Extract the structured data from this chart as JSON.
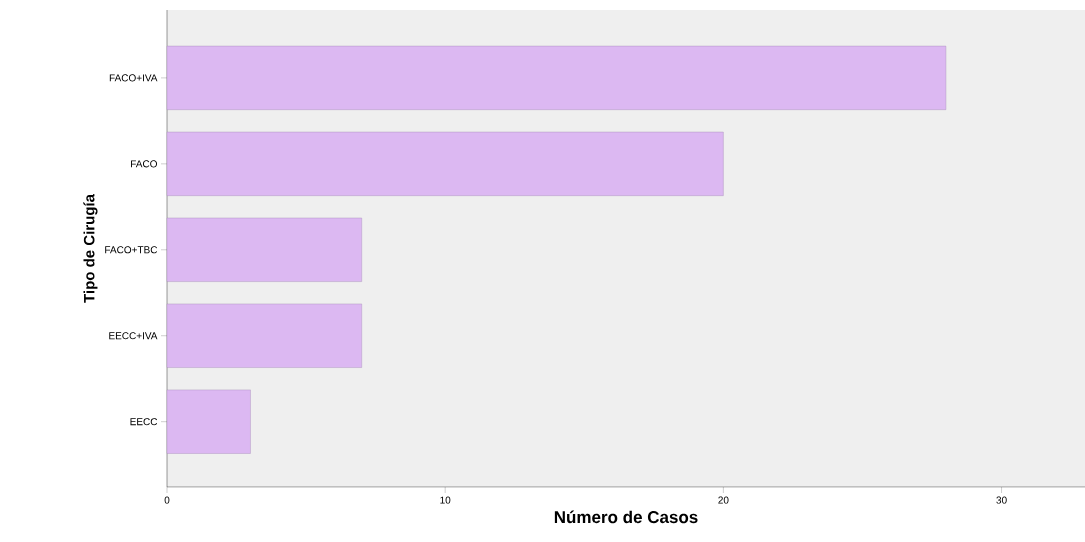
{
  "chart_data": {
    "type": "bar",
    "orientation": "horizontal",
    "xlabel": "Número de Casos",
    "ylabel": "Tipo de Cirugía",
    "categories": [
      "FACO+IVA",
      "FACO",
      "FACO+TBC",
      "EECC+IVA",
      "EECC"
    ],
    "values": [
      28,
      20,
      7,
      7,
      3
    ],
    "color": "#dcb8f2",
    "xlim": [
      0,
      33
    ],
    "xticks": [
      0,
      10,
      20,
      30
    ],
    "grid": false
  }
}
